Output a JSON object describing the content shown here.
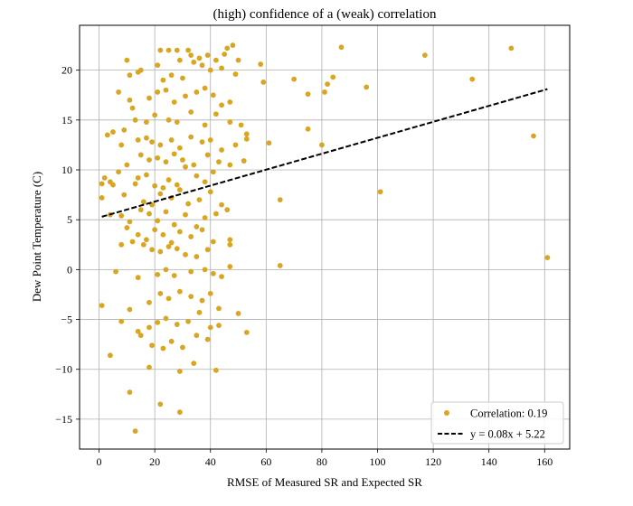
{
  "chart_data": {
    "type": "scatter",
    "title": "(high) confidence of a (weak) correlation",
    "xlabel": "RMSE of Measured SR and Expected SR",
    "ylabel": "Dew Point Temperature (C)",
    "xlim": [
      -7,
      169
    ],
    "ylim": [
      -18,
      24.5
    ],
    "xticks": [
      0,
      20,
      40,
      60,
      80,
      100,
      120,
      140,
      160
    ],
    "yticks": [
      -15,
      -10,
      -5,
      0,
      5,
      10,
      15,
      20
    ],
    "grid": true,
    "legend_position": "bottom-right",
    "colors": {
      "points": "#daa520",
      "fit_line": "#000000"
    },
    "fit": {
      "label": "y = 0.08x + 5.22",
      "slope": 0.08,
      "intercept": 5.22,
      "x_range": [
        1,
        161
      ]
    },
    "series": [
      {
        "name": "Correlation: 0.19",
        "points": [
          [
            10,
            21
          ],
          [
            11,
            19.5
          ],
          [
            14,
            19.8
          ],
          [
            15,
            20
          ],
          [
            22,
            22
          ],
          [
            25,
            22
          ],
          [
            28,
            22
          ],
          [
            32,
            22
          ],
          [
            29,
            21
          ],
          [
            33,
            21.5
          ],
          [
            36,
            21.2
          ],
          [
            39,
            21.5
          ],
          [
            40,
            20
          ],
          [
            42,
            21
          ],
          [
            45,
            21.6
          ],
          [
            46,
            22.2
          ],
          [
            48,
            22.5
          ],
          [
            50,
            21
          ],
          [
            37,
            20.5
          ],
          [
            34,
            20.8
          ],
          [
            21,
            20.5
          ],
          [
            23,
            19
          ],
          [
            26,
            19.5
          ],
          [
            30,
            19.2
          ],
          [
            44,
            20.2
          ],
          [
            49,
            19.6
          ],
          [
            58,
            20.6
          ],
          [
            59,
            18.8
          ],
          [
            70,
            19.1
          ],
          [
            82,
            18.6
          ],
          [
            84,
            19.3
          ],
          [
            87,
            22.3
          ],
          [
            117,
            21.5
          ],
          [
            134,
            19.1
          ],
          [
            148,
            22.2
          ],
          [
            7,
            17.8
          ],
          [
            11,
            17
          ],
          [
            12,
            16.2
          ],
          [
            18,
            17.2
          ],
          [
            21,
            17.8
          ],
          [
            24,
            18
          ],
          [
            27,
            16.8
          ],
          [
            31,
            17.4
          ],
          [
            35,
            17.8
          ],
          [
            38,
            18.2
          ],
          [
            41,
            17.5
          ],
          [
            44,
            16.5
          ],
          [
            47,
            16.8
          ],
          [
            9,
            14
          ],
          [
            13,
            15
          ],
          [
            17,
            14.8
          ],
          [
            20,
            15.5
          ],
          [
            25,
            15
          ],
          [
            28,
            14.8
          ],
          [
            33,
            15.8
          ],
          [
            38,
            14.5
          ],
          [
            42,
            15.6
          ],
          [
            47,
            14.8
          ],
          [
            51,
            14.5
          ],
          [
            53,
            13.6
          ],
          [
            75,
            17.6
          ],
          [
            81,
            17.8
          ],
          [
            96,
            18.3
          ],
          [
            75,
            14.1
          ],
          [
            156,
            13.4
          ],
          [
            3,
            13.5
          ],
          [
            5,
            13.8
          ],
          [
            8,
            12.5
          ],
          [
            14,
            13
          ],
          [
            17,
            13.2
          ],
          [
            19,
            12.8
          ],
          [
            22,
            12.5
          ],
          [
            26,
            13
          ],
          [
            29,
            12.2
          ],
          [
            33,
            13.3
          ],
          [
            37,
            12.8
          ],
          [
            40,
            13
          ],
          [
            44,
            12
          ],
          [
            49,
            12.5
          ],
          [
            53,
            13.1
          ],
          [
            61,
            12.7
          ],
          [
            15,
            11.5
          ],
          [
            18,
            11
          ],
          [
            21,
            11.2
          ],
          [
            24,
            10.8
          ],
          [
            27,
            11.6
          ],
          [
            30,
            11
          ],
          [
            34,
            10.5
          ],
          [
            39,
            11.5
          ],
          [
            43,
            10.8
          ],
          [
            52,
            10.9
          ],
          [
            80,
            12.5
          ],
          [
            1,
            8.6
          ],
          [
            2,
            9.2
          ],
          [
            4,
            8.8
          ],
          [
            7,
            9.8
          ],
          [
            10,
            10.5
          ],
          [
            14,
            9.2
          ],
          [
            17,
            9.5
          ],
          [
            20,
            8.4
          ],
          [
            23,
            8.2
          ],
          [
            25,
            9
          ],
          [
            28,
            8.5
          ],
          [
            31,
            10.3
          ],
          [
            35,
            9.4
          ],
          [
            38,
            8.8
          ],
          [
            41,
            9.8
          ],
          [
            47,
            10.5
          ],
          [
            1,
            7.2
          ],
          [
            5,
            8.5
          ],
          [
            9,
            7.5
          ],
          [
            13,
            8.6
          ],
          [
            16,
            6.8
          ],
          [
            19,
            6.5
          ],
          [
            22,
            7.6
          ],
          [
            26,
            7.2
          ],
          [
            29,
            8
          ],
          [
            32,
            6.6
          ],
          [
            36,
            7
          ],
          [
            40,
            7.8
          ],
          [
            44,
            6.5
          ],
          [
            65,
            7
          ],
          [
            101,
            7.8
          ],
          [
            4,
            5.5
          ],
          [
            8,
            5.4
          ],
          [
            11,
            4.8
          ],
          [
            15,
            6
          ],
          [
            18,
            5.6
          ],
          [
            21,
            4.9
          ],
          [
            24,
            5.8
          ],
          [
            27,
            4.5
          ],
          [
            31,
            5.5
          ],
          [
            35,
            4.3
          ],
          [
            38,
            5.2
          ],
          [
            42,
            5.6
          ],
          [
            46,
            6
          ],
          [
            10,
            4.2
          ],
          [
            14,
            3.5
          ],
          [
            17,
            3
          ],
          [
            20,
            4
          ],
          [
            23,
            3.5
          ],
          [
            26,
            2.7
          ],
          [
            29,
            3.8
          ],
          [
            33,
            3.3
          ],
          [
            37,
            4
          ],
          [
            41,
            2.8
          ],
          [
            47,
            2.5
          ],
          [
            8,
            2.5
          ],
          [
            12,
            2.8
          ],
          [
            16,
            2.5
          ],
          [
            19,
            2
          ],
          [
            22,
            1.8
          ],
          [
            25,
            2.3
          ],
          [
            28,
            2.1
          ],
          [
            31,
            1.5
          ],
          [
            35,
            1.3
          ],
          [
            39,
            2
          ],
          [
            47,
            3
          ],
          [
            65,
            0.4
          ],
          [
            161,
            1.2
          ],
          [
            6,
            -0.2
          ],
          [
            14,
            -0.8
          ],
          [
            21,
            -0.5
          ],
          [
            24,
            0
          ],
          [
            27,
            -0.6
          ],
          [
            33,
            -0.2
          ],
          [
            38,
            0
          ],
          [
            41,
            -0.4
          ],
          [
            44,
            -0.7
          ],
          [
            47,
            0.3
          ],
          [
            1,
            -3.6
          ],
          [
            11,
            -4
          ],
          [
            18,
            -3.3
          ],
          [
            22,
            -2.4
          ],
          [
            25,
            -2.9
          ],
          [
            29,
            -2.2
          ],
          [
            33,
            -2.7
          ],
          [
            37,
            -3.1
          ],
          [
            40,
            -2.4
          ],
          [
            43,
            -3.9
          ],
          [
            50,
            -4.4
          ],
          [
            8,
            -5.2
          ],
          [
            14,
            -6.2
          ],
          [
            18,
            -5.8
          ],
          [
            21,
            -5.3
          ],
          [
            24,
            -4.9
          ],
          [
            28,
            -5.5
          ],
          [
            32,
            -5.2
          ],
          [
            36,
            -4.3
          ],
          [
            40,
            -5.8
          ],
          [
            43,
            -5.6
          ],
          [
            53,
            -6.3
          ],
          [
            4,
            -8.6
          ],
          [
            15,
            -6.6
          ],
          [
            19,
            -7.6
          ],
          [
            23,
            -7.9
          ],
          [
            26,
            -7.2
          ],
          [
            30,
            -7.8
          ],
          [
            35,
            -6.6
          ],
          [
            39,
            -7
          ],
          [
            18,
            -9.8
          ],
          [
            29,
            -10.2
          ],
          [
            34,
            -9.4
          ],
          [
            42,
            -10.1
          ],
          [
            11,
            -12.3
          ],
          [
            22,
            -13.5
          ],
          [
            29,
            -14.3
          ],
          [
            13,
            -16.2
          ]
        ]
      }
    ]
  }
}
